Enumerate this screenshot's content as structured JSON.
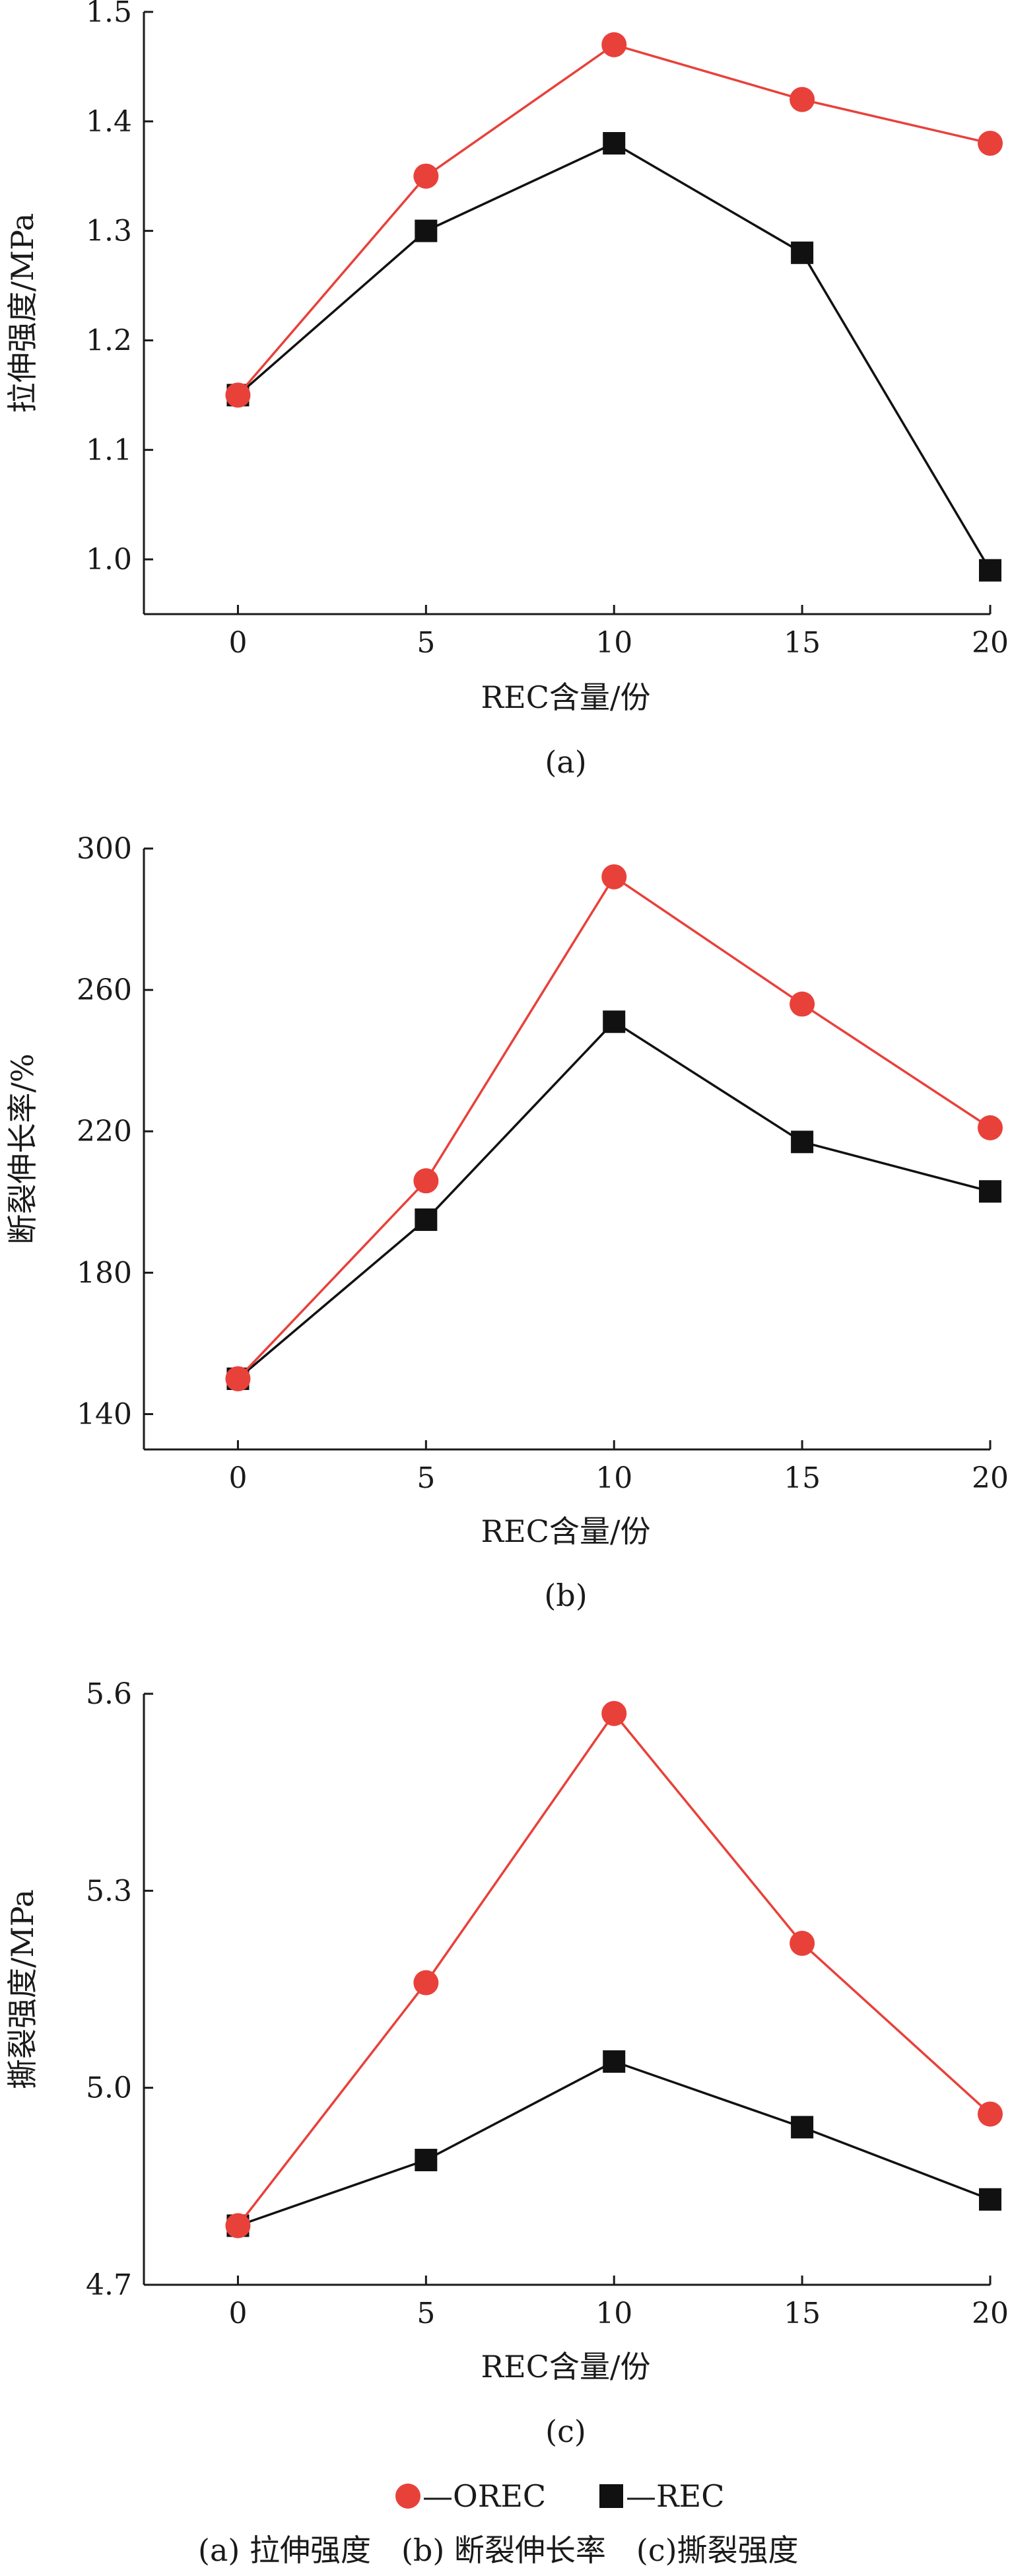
{
  "chart_data": [
    {
      "type": "line",
      "panel_label": "(a)",
      "xlabel": "REC含量/份",
      "ylabel": "拉伸强度/MPa",
      "x": [
        0,
        5,
        10,
        15,
        20
      ],
      "xlim": [
        -2.5,
        20
      ],
      "ylim": [
        0.95,
        1.5
      ],
      "yticks": [
        "1.0",
        "1.1",
        "1.2",
        "1.3",
        "1.4",
        "1.5"
      ],
      "xticks": [
        "0",
        "5",
        "10",
        "15",
        "20"
      ],
      "series": [
        {
          "name": "OREC",
          "marker": "circle",
          "color": "#e8413a",
          "values": [
            1.15,
            1.35,
            1.47,
            1.42,
            1.38
          ]
        },
        {
          "name": "REC",
          "marker": "square",
          "color": "#111111",
          "values": [
            1.15,
            1.3,
            1.38,
            1.28,
            0.99
          ]
        }
      ]
    },
    {
      "type": "line",
      "panel_label": "(b)",
      "xlabel": "REC含量/份",
      "ylabel": "断裂伸长率/%",
      "x": [
        0,
        5,
        10,
        15,
        20
      ],
      "xlim": [
        -2.5,
        20
      ],
      "ylim": [
        130,
        300
      ],
      "yticks": [
        "140",
        "180",
        "220",
        "260",
        "300"
      ],
      "xticks": [
        "0",
        "5",
        "10",
        "15",
        "20"
      ],
      "series": [
        {
          "name": "OREC",
          "marker": "circle",
          "color": "#e8413a",
          "values": [
            150,
            206,
            292,
            256,
            221
          ]
        },
        {
          "name": "REC",
          "marker": "square",
          "color": "#111111",
          "values": [
            150,
            195,
            251,
            217,
            203
          ]
        }
      ]
    },
    {
      "type": "line",
      "panel_label": "(c)",
      "xlabel": "REC含量/份",
      "ylabel": "撕裂强度/MPa",
      "x": [
        0,
        5,
        10,
        15,
        20
      ],
      "xlim": [
        -2.5,
        20
      ],
      "ylim": [
        4.7,
        5.6
      ],
      "yticks": [
        "4.7",
        "5.0",
        "5.3",
        "5.6"
      ],
      "xticks": [
        "0",
        "5",
        "10",
        "15",
        "20"
      ],
      "series": [
        {
          "name": "OREC",
          "marker": "circle",
          "color": "#e8413a",
          "values": [
            4.79,
            5.16,
            5.57,
            5.22,
            4.96
          ]
        },
        {
          "name": "REC",
          "marker": "square",
          "color": "#111111",
          "values": [
            4.79,
            4.89,
            5.04,
            4.94,
            4.83
          ]
        }
      ]
    }
  ],
  "legend": {
    "orec": "—OREC",
    "rec": "—REC"
  },
  "caption": "(a) 拉伸强度　(b) 断裂伸长率　(c)撕裂强度"
}
